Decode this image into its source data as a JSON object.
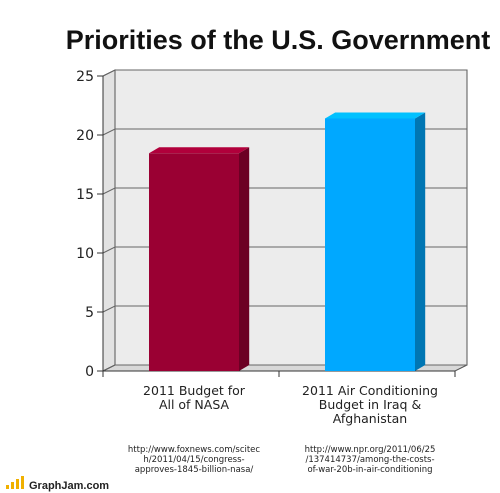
{
  "chart_data": {
    "type": "bar",
    "title": "Priorities of the U.S. Government",
    "xlabel": "",
    "ylabel": "",
    "ylim": [
      0,
      25
    ],
    "yticks": [
      0,
      5,
      10,
      15,
      20,
      25
    ],
    "grid": true,
    "categories": [
      [
        "2011 Budget for",
        "All of NASA"
      ],
      [
        "2011 Air Conditioning",
        "Budget in Iraq &",
        "Afghanistan"
      ]
    ],
    "values": [
      18.45,
      21.4
    ],
    "bar_colors": [
      "#9a0033",
      "#00a8ff"
    ],
    "sources": [
      [
        "http://www.foxnews.com/scitec",
        "h/2011/04/15/congress-",
        "approves-1845-billion-nasa/"
      ],
      [
        "http://www.npr.org/2011/06/25",
        "/137414737/among-the-costs-",
        "of-war-20b-in-air-conditioning"
      ]
    ]
  },
  "footer": {
    "brand": "GraphJam.com"
  }
}
